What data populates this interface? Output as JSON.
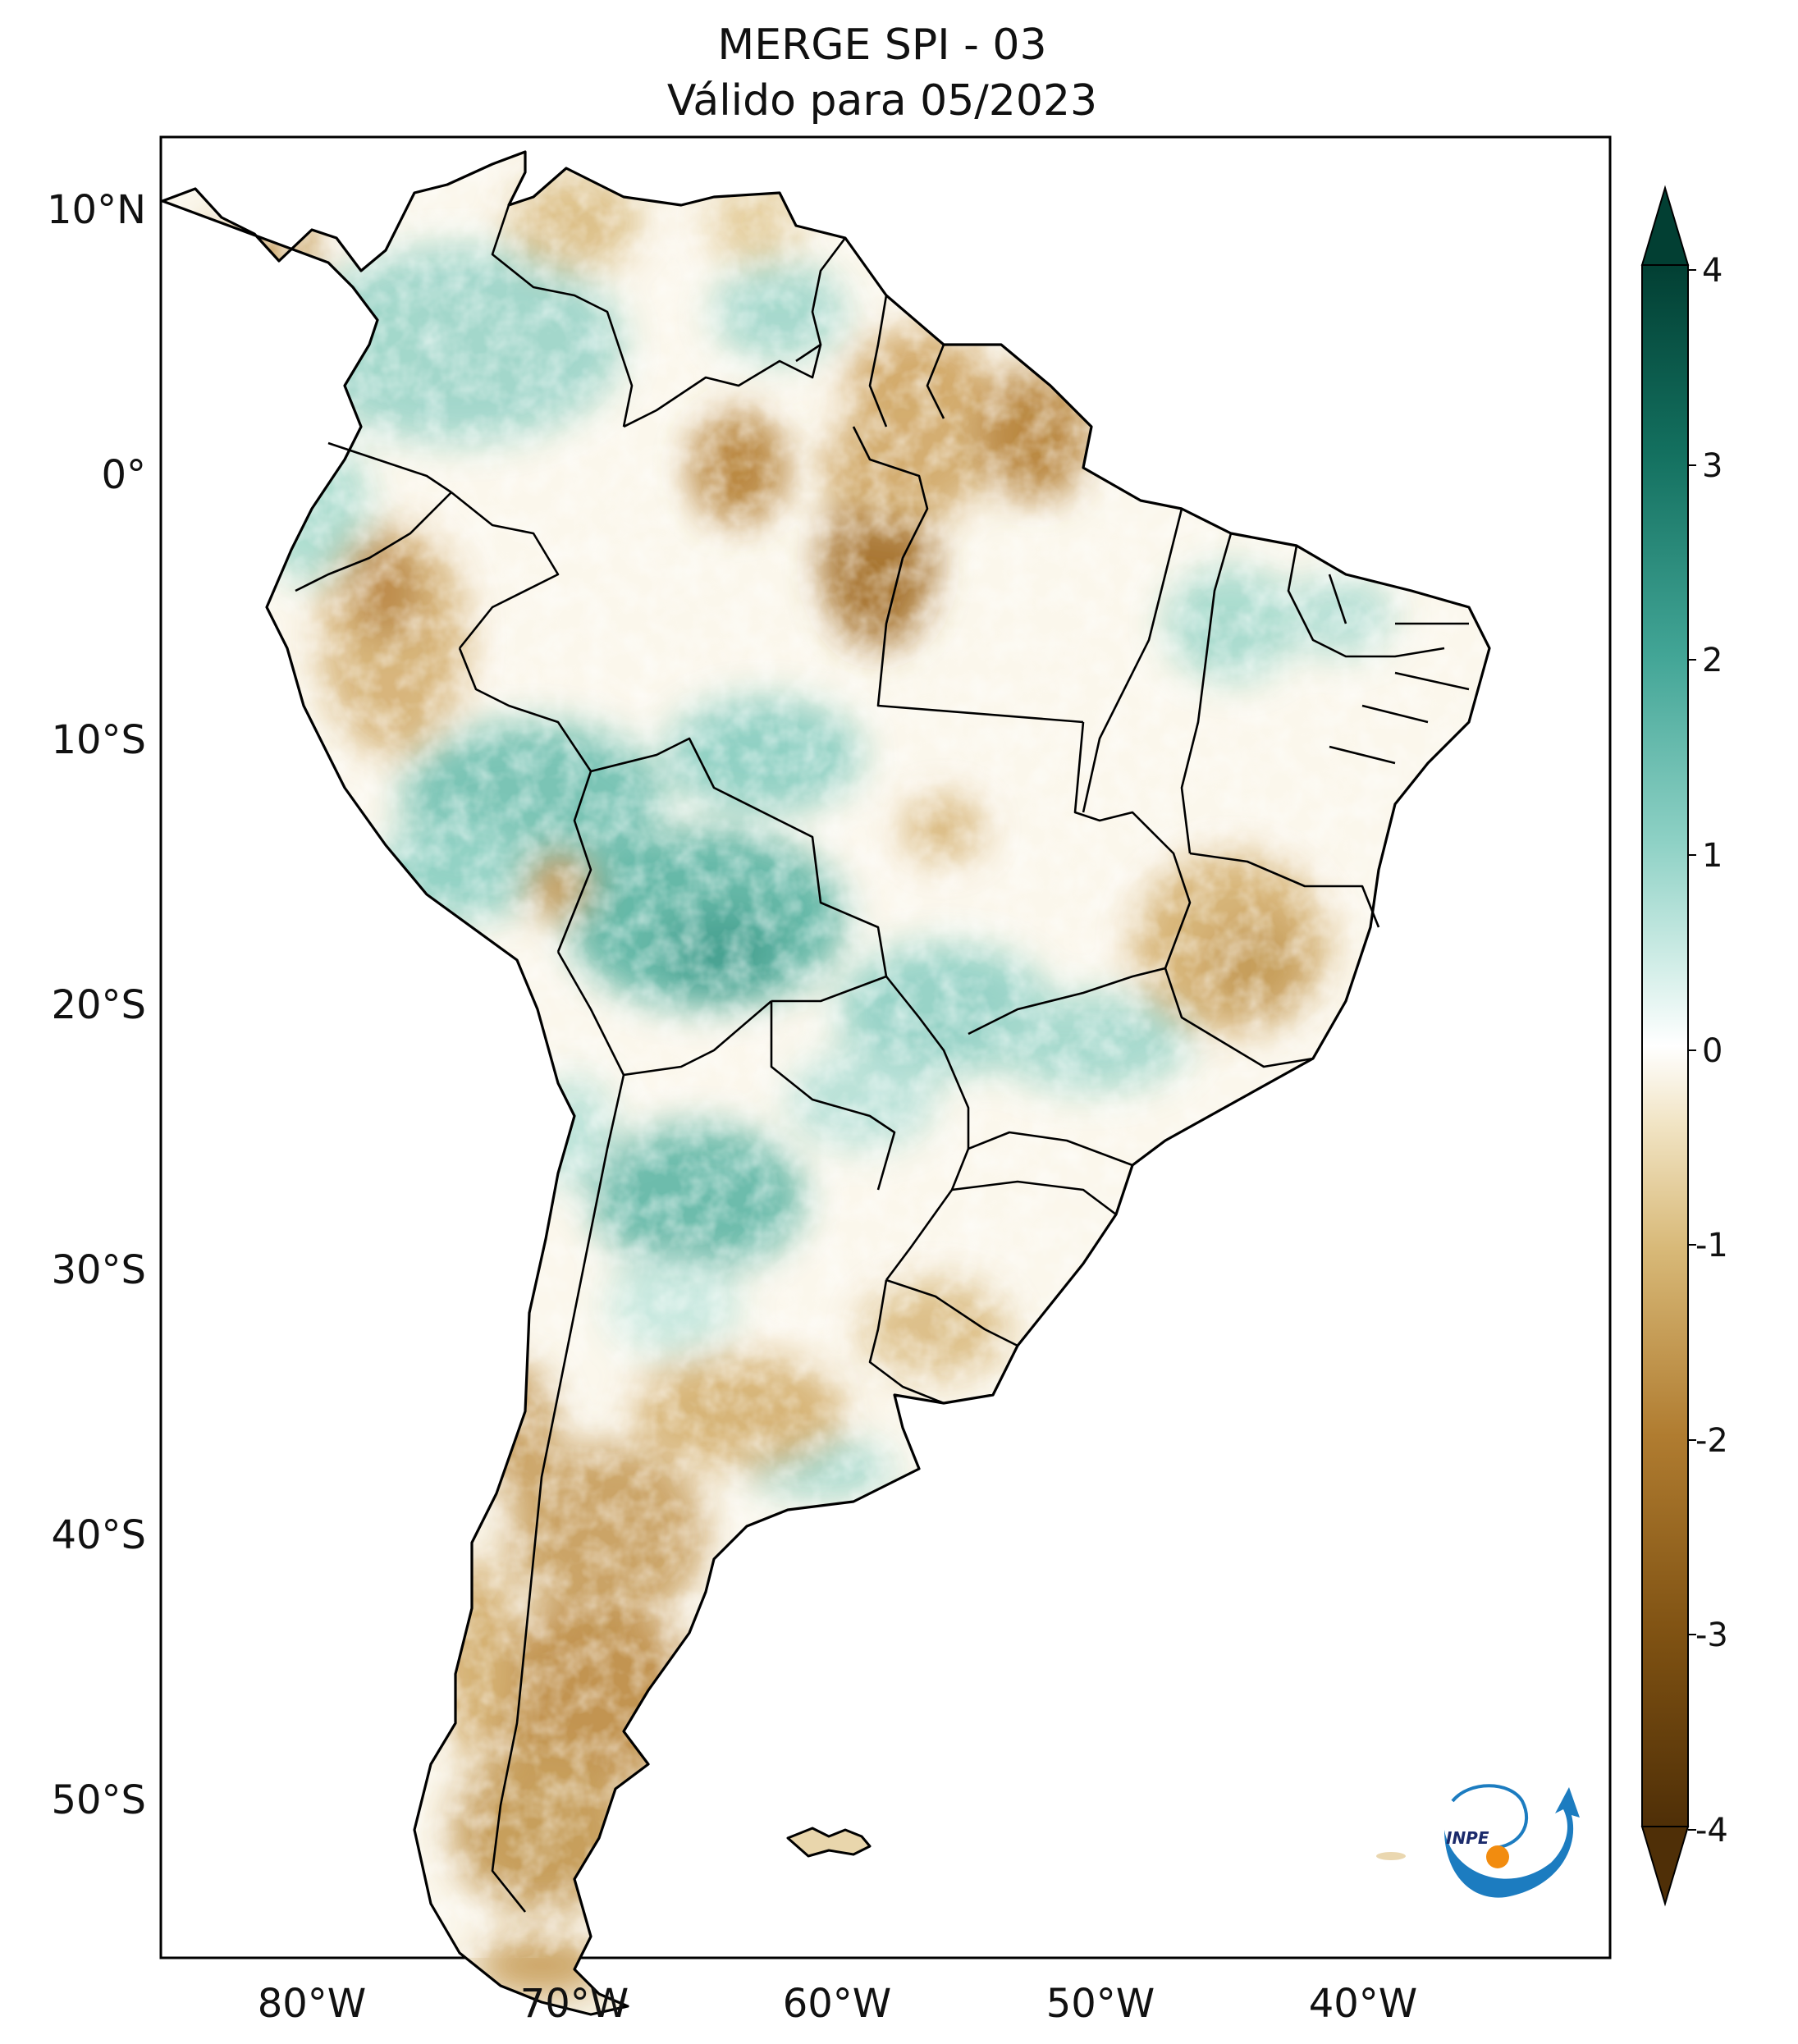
{
  "title": {
    "line1": "MERGE   SPI - 03",
    "line2": "Válido para 05/2023"
  },
  "axes": {
    "lon_ticks": [
      "80°W",
      "70°W",
      "60°W",
      "50°W",
      "40°W"
    ],
    "lat_ticks": [
      "10°N",
      "0°",
      "10°S",
      "20°S",
      "30°S",
      "40°S",
      "50°S"
    ],
    "lon_range": [
      -85,
      -30
    ],
    "lat_range": [
      -56,
      13
    ]
  },
  "colorbar": {
    "ticks": [
      "4",
      "3",
      "2",
      "1",
      "0",
      "-1",
      "-2",
      "-3",
      "-4"
    ],
    "range": [
      -4,
      4
    ],
    "extend": "both",
    "colors": {
      "min": "#4a2a06",
      "c_35": "#7a4d0f",
      "c_25": "#a8742a",
      "c_15": "#d2b06c",
      "c_05": "#efe1bd",
      "zero": "#ffffff",
      "p_05": "#cdebe5",
      "p_15": "#7dcabd",
      "p_25": "#3aa191",
      "p_35": "#0f6b5e",
      "max": "#003c30"
    }
  },
  "logo": {
    "text": "INPE",
    "accent": "#1c7cc0",
    "dot": "#f28c0f"
  },
  "map_features": {
    "positive_anomaly_regions": [
      "Colombia",
      "western Amazon",
      "Acre and Rondônia",
      "Bolivia",
      "Mato Grosso do Sul",
      "northeast Argentina",
      "northern Chile"
    ],
    "negative_anomaly_regions": [
      "Venezuela",
      "Guianas",
      "Amapá",
      "central Pará",
      "Peru",
      "Minas Gerais",
      "Uruguay",
      "Patagonia",
      "southern Chile"
    ]
  }
}
